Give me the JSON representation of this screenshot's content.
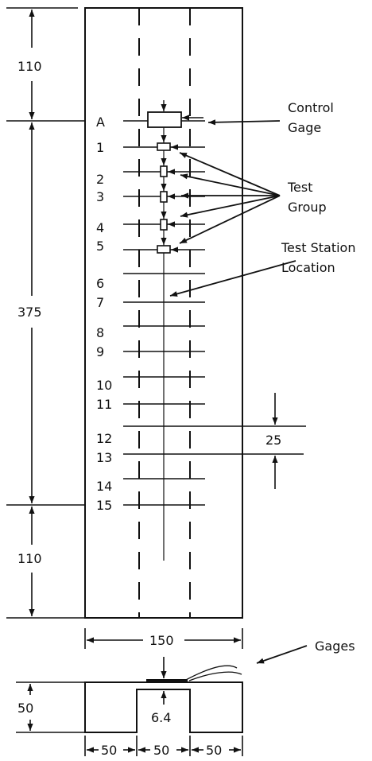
{
  "stations": [
    "A",
    "1",
    "2",
    "3",
    "4",
    "5",
    "6",
    "7",
    "8",
    "9",
    "10",
    "11",
    "12",
    "13",
    "14",
    "15"
  ],
  "dimensions": {
    "top": "110",
    "middle": "375",
    "bottom": "110",
    "spacing": "25",
    "width": "150",
    "height": "50",
    "groove_depth": "6.4",
    "segment_left": "50",
    "segment_middle": "50",
    "segment_right": "50"
  },
  "callouts": {
    "control_gage_line1": "Control",
    "control_gage_line2": "Gage",
    "test_group_line1": "Test",
    "test_group_line2": "Group",
    "test_station_line1": "Test Station",
    "test_station_line2": "Location",
    "gages": "Gages"
  }
}
